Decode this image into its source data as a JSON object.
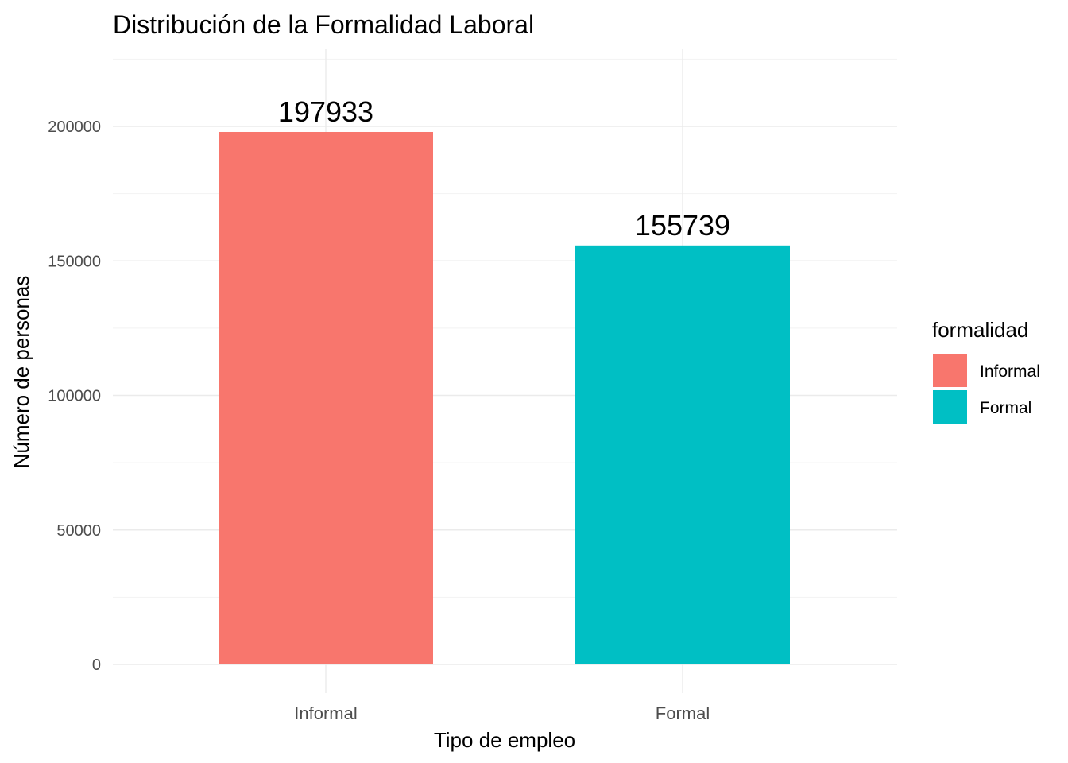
{
  "chart_data": {
    "type": "bar",
    "title": "Distribución de la Formalidad Laboral",
    "xlabel": "Tipo de empleo",
    "ylabel": "Número de personas",
    "categories": [
      "Informal",
      "Formal"
    ],
    "values": [
      197933,
      155739
    ],
    "data_labels": [
      "197933",
      "155739"
    ],
    "colors": [
      "#F8766D",
      "#00BFC4"
    ],
    "ylim": [
      0,
      225000
    ],
    "yticks": [
      0,
      50000,
      100000,
      150000,
      200000
    ],
    "ytick_labels": [
      "0",
      "50000",
      "100000",
      "150000",
      "200000"
    ],
    "grid": true,
    "legend": {
      "title": "formalidad",
      "position": "right",
      "entries": [
        {
          "label": "Informal",
          "color": "#F8766D"
        },
        {
          "label": "Formal",
          "color": "#00BFC4"
        }
      ]
    }
  }
}
